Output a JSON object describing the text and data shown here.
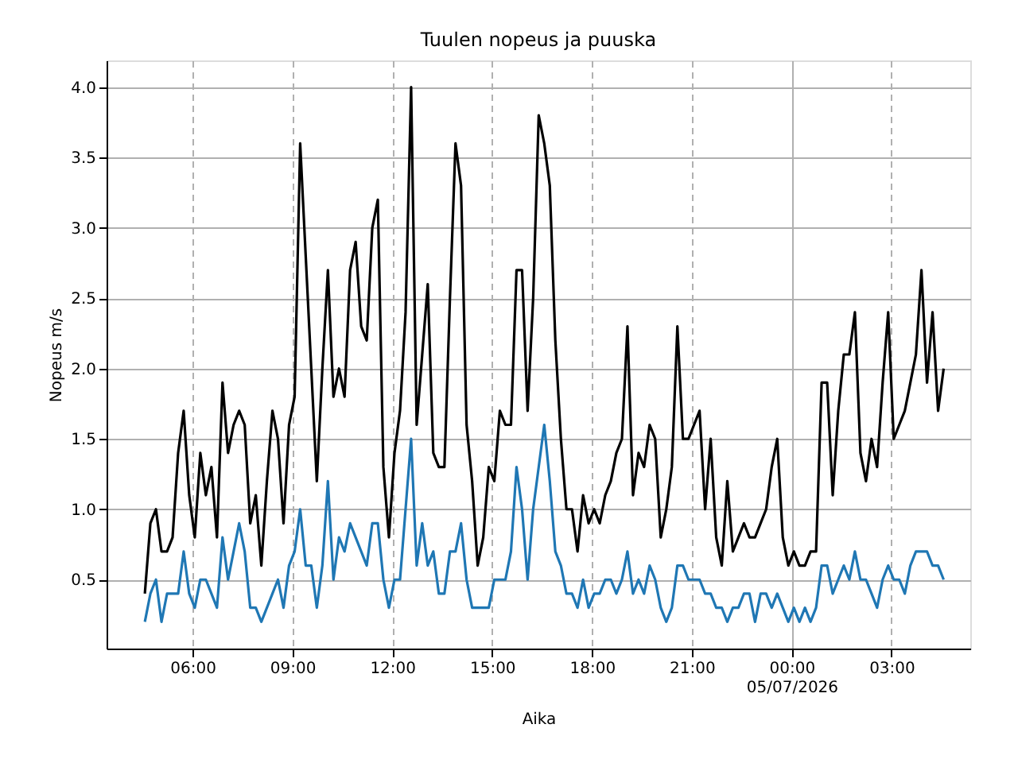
{
  "chart_data": {
    "type": "line",
    "title": "Tuulen nopeus ja puuska",
    "xlabel": "Aika",
    "ylabel": "Nopeus m/s",
    "x": [
      "2026-07-04T04:34",
      "2026-07-04T04:44",
      "2026-07-04T04:54",
      "2026-07-04T05:04",
      "2026-07-04T05:14",
      "2026-07-04T05:24",
      "2026-07-04T05:34",
      "2026-07-04T05:44",
      "2026-07-04T05:54",
      "2026-07-04T06:04",
      "2026-07-04T06:14",
      "2026-07-04T06:24",
      "2026-07-04T06:34",
      "2026-07-04T06:44",
      "2026-07-04T06:54",
      "2026-07-04T07:04",
      "2026-07-04T07:14",
      "2026-07-04T07:24",
      "2026-07-04T07:34",
      "2026-07-04T07:44",
      "2026-07-04T07:54",
      "2026-07-04T08:04",
      "2026-07-04T08:14",
      "2026-07-04T08:24",
      "2026-07-04T08:34",
      "2026-07-04T08:44",
      "2026-07-04T08:54",
      "2026-07-04T09:04",
      "2026-07-04T09:14",
      "2026-07-04T09:24",
      "2026-07-04T09:34",
      "2026-07-04T09:44",
      "2026-07-04T09:54",
      "2026-07-04T10:04",
      "2026-07-04T10:14",
      "2026-07-04T10:24",
      "2026-07-04T10:34",
      "2026-07-04T10:44",
      "2026-07-04T10:54",
      "2026-07-04T11:04",
      "2026-07-04T11:14",
      "2026-07-04T11:24",
      "2026-07-04T11:34",
      "2026-07-04T11:44",
      "2026-07-04T11:54",
      "2026-07-04T12:04",
      "2026-07-04T12:14",
      "2026-07-04T12:24",
      "2026-07-04T12:34",
      "2026-07-04T12:44",
      "2026-07-04T12:54",
      "2026-07-04T13:04",
      "2026-07-04T13:14",
      "2026-07-04T13:24",
      "2026-07-04T13:34",
      "2026-07-04T13:44",
      "2026-07-04T13:54",
      "2026-07-04T14:04",
      "2026-07-04T14:14",
      "2026-07-04T14:24",
      "2026-07-04T14:34",
      "2026-07-04T14:44",
      "2026-07-04T14:54",
      "2026-07-04T15:04",
      "2026-07-04T15:14",
      "2026-07-04T15:24",
      "2026-07-04T15:34",
      "2026-07-04T15:44",
      "2026-07-04T15:54",
      "2026-07-04T16:04",
      "2026-07-04T16:14",
      "2026-07-04T16:24",
      "2026-07-04T16:34",
      "2026-07-04T16:44",
      "2026-07-04T16:54",
      "2026-07-04T17:04",
      "2026-07-04T17:14",
      "2026-07-04T17:24",
      "2026-07-04T17:34",
      "2026-07-04T17:44",
      "2026-07-04T17:54",
      "2026-07-04T18:04",
      "2026-07-04T18:14",
      "2026-07-04T18:24",
      "2026-07-04T18:34",
      "2026-07-04T18:44",
      "2026-07-04T18:54",
      "2026-07-04T19:04",
      "2026-07-04T19:14",
      "2026-07-04T19:24",
      "2026-07-04T19:34",
      "2026-07-04T19:44",
      "2026-07-04T19:54",
      "2026-07-04T20:04",
      "2026-07-04T20:14",
      "2026-07-04T20:24",
      "2026-07-04T20:34",
      "2026-07-04T20:44",
      "2026-07-04T20:54",
      "2026-07-04T21:04",
      "2026-07-04T21:14",
      "2026-07-04T21:24",
      "2026-07-04T21:34",
      "2026-07-04T21:44",
      "2026-07-04T21:54",
      "2026-07-04T22:04",
      "2026-07-04T22:14",
      "2026-07-04T22:24",
      "2026-07-04T22:34",
      "2026-07-04T22:44",
      "2026-07-04T22:54",
      "2026-07-04T23:04",
      "2026-07-04T23:14",
      "2026-07-04T23:24",
      "2026-07-04T23:34",
      "2026-07-04T23:44",
      "2026-07-04T23:54",
      "2026-07-05T00:04",
      "2026-07-05T00:14",
      "2026-07-05T00:24",
      "2026-07-05T00:34",
      "2026-07-05T00:44",
      "2026-07-05T00:54",
      "2026-07-05T01:04",
      "2026-07-05T01:14",
      "2026-07-05T01:24",
      "2026-07-05T01:34",
      "2026-07-05T01:44",
      "2026-07-05T01:54",
      "2026-07-05T02:04",
      "2026-07-05T02:14",
      "2026-07-05T02:24",
      "2026-07-05T02:34",
      "2026-07-05T02:44",
      "2026-07-05T02:54",
      "2026-07-05T03:04",
      "2026-07-05T03:14",
      "2026-07-05T03:24",
      "2026-07-05T03:34",
      "2026-07-05T03:44",
      "2026-07-05T03:54",
      "2026-07-05T04:04",
      "2026-07-05T04:14",
      "2026-07-05T04:24",
      "2026-07-05T04:34"
    ],
    "series": [
      {
        "color": "#000000",
        "values": [
          0.4,
          0.9,
          1.0,
          0.7,
          0.7,
          0.8,
          1.4,
          1.7,
          1.1,
          0.8,
          1.4,
          1.1,
          1.3,
          0.8,
          1.9,
          1.4,
          1.6,
          1.7,
          1.6,
          0.9,
          1.1,
          0.6,
          1.2,
          1.7,
          1.5,
          0.9,
          1.6,
          1.8,
          3.6,
          2.8,
          2.0,
          1.2,
          2.0,
          2.7,
          1.8,
          2.0,
          1.8,
          2.7,
          2.9,
          2.3,
          2.2,
          3.0,
          3.2,
          1.3,
          0.8,
          1.4,
          1.7,
          2.4,
          4.0,
          1.6,
          2.1,
          2.6,
          1.4,
          1.3,
          1.3,
          2.5,
          3.6,
          3.3,
          1.6,
          1.2,
          0.6,
          0.8,
          1.3,
          1.2,
          1.7,
          1.6,
          1.6,
          2.7,
          2.7,
          1.7,
          2.5,
          3.8,
          3.6,
          3.3,
          2.2,
          1.5,
          1.0,
          1.0,
          0.7,
          1.1,
          0.9,
          1.0,
          0.9,
          1.1,
          1.2,
          1.4,
          1.5,
          2.3,
          1.1,
          1.4,
          1.3,
          1.6,
          1.5,
          0.8,
          1.0,
          1.3,
          2.3,
          1.5,
          1.5,
          1.6,
          1.7,
          1.0,
          1.5,
          0.8,
          0.6,
          1.2,
          0.7,
          0.8,
          0.9,
          0.8,
          0.8,
          0.9,
          1.0,
          1.3,
          1.5,
          0.8,
          0.6,
          0.7,
          0.6,
          0.6,
          0.7,
          0.7,
          1.9,
          1.9,
          1.1,
          1.7,
          2.1,
          2.1,
          2.4,
          1.4,
          1.2,
          1.5,
          1.3,
          1.9,
          2.4,
          1.5,
          1.6,
          1.7,
          1.9,
          2.1,
          2.7,
          1.9,
          2.4,
          1.7,
          2.0
        ]
      },
      {
        "color": "#1f77b4",
        "values": [
          0.2,
          0.4,
          0.5,
          0.2,
          0.4,
          0.4,
          0.4,
          0.7,
          0.4,
          0.3,
          0.5,
          0.5,
          0.4,
          0.3,
          0.8,
          0.5,
          0.7,
          0.9,
          0.7,
          0.3,
          0.3,
          0.2,
          0.3,
          0.4,
          0.5,
          0.3,
          0.6,
          0.7,
          1.0,
          0.6,
          0.6,
          0.3,
          0.6,
          1.2,
          0.5,
          0.8,
          0.7,
          0.9,
          0.8,
          0.7,
          0.6,
          0.9,
          0.9,
          0.5,
          0.3,
          0.5,
          0.5,
          1.0,
          1.5,
          0.6,
          0.9,
          0.6,
          0.7,
          0.4,
          0.4,
          0.7,
          0.7,
          0.9,
          0.5,
          0.3,
          0.3,
          0.3,
          0.3,
          0.5,
          0.5,
          0.5,
          0.7,
          1.3,
          1.0,
          0.5,
          1.0,
          1.3,
          1.6,
          1.2,
          0.7,
          0.6,
          0.4,
          0.4,
          0.3,
          0.5,
          0.3,
          0.4,
          0.4,
          0.5,
          0.5,
          0.4,
          0.5,
          0.7,
          0.4,
          0.5,
          0.4,
          0.6,
          0.5,
          0.3,
          0.2,
          0.3,
          0.6,
          0.6,
          0.5,
          0.5,
          0.5,
          0.4,
          0.4,
          0.3,
          0.3,
          0.2,
          0.3,
          0.3,
          0.4,
          0.4,
          0.2,
          0.4,
          0.4,
          0.3,
          0.4,
          0.3,
          0.2,
          0.3,
          0.2,
          0.3,
          0.2,
          0.3,
          0.6,
          0.6,
          0.4,
          0.5,
          0.6,
          0.5,
          0.7,
          0.5,
          0.5,
          0.4,
          0.3,
          0.5,
          0.6,
          0.5,
          0.5,
          0.4,
          0.6,
          0.7,
          0.7,
          0.7,
          0.6,
          0.6,
          0.5
        ]
      }
    ],
    "xlim": [
      "2026-07-04T03:25",
      "2026-07-05T05:22"
    ],
    "xticks": [
      {
        "value": "2026-07-04T06:00",
        "label": "06:00"
      },
      {
        "value": "2026-07-04T09:00",
        "label": "09:00"
      },
      {
        "value": "2026-07-04T12:00",
        "label": "12:00"
      },
      {
        "value": "2026-07-04T15:00",
        "label": "15:00"
      },
      {
        "value": "2026-07-04T18:00",
        "label": "18:00"
      },
      {
        "value": "2026-07-04T21:00",
        "label": "21:00"
      },
      {
        "value": "2026-07-05T00:00",
        "label": "00:00\n05/07/2026"
      },
      {
        "value": "2026-07-05T03:00",
        "label": "03:00"
      }
    ],
    "ylim": [
      0.01,
      4.19
    ],
    "yticks": [
      {
        "value": 0.5,
        "label": "0.5"
      },
      {
        "value": 1,
        "label": "1.0"
      },
      {
        "value": 1.5,
        "label": "1.5"
      },
      {
        "value": 2,
        "label": "2.0"
      },
      {
        "value": 2.5,
        "label": "2.5"
      },
      {
        "value": 3,
        "label": "3.0"
      },
      {
        "value": 3.5,
        "label": "3.5"
      },
      {
        "value": 4,
        "label": "4.0"
      }
    ],
    "grid": true
  }
}
